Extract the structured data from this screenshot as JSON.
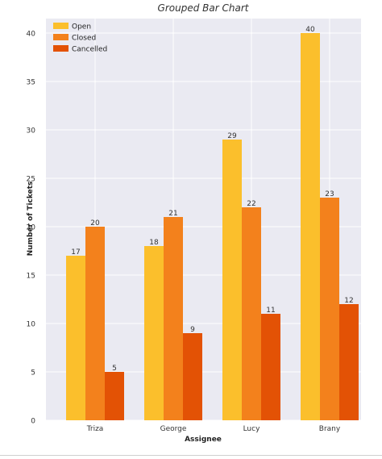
{
  "chart_data": {
    "type": "bar",
    "title": "Grouped Bar Chart",
    "xlabel": "Assignee",
    "ylabel": "Number of Tickets",
    "categories": [
      "Triza",
      "George",
      "Lucy",
      "Brany"
    ],
    "series": [
      {
        "name": "Open",
        "values": [
          17,
          18,
          29,
          40
        ],
        "color": "#fbbf2c"
      },
      {
        "name": "Closed",
        "values": [
          20,
          21,
          22,
          23
        ],
        "color": "#f3811c"
      },
      {
        "name": "Cancelled",
        "values": [
          5,
          9,
          11,
          12
        ],
        "color": "#e35205"
      }
    ],
    "ylim": [
      0,
      41.5
    ],
    "yticks": [
      0,
      5,
      10,
      15,
      20,
      25,
      30,
      35,
      40
    ],
    "grid": true,
    "legend_position": "top-left",
    "background": "#eaeaf2"
  }
}
